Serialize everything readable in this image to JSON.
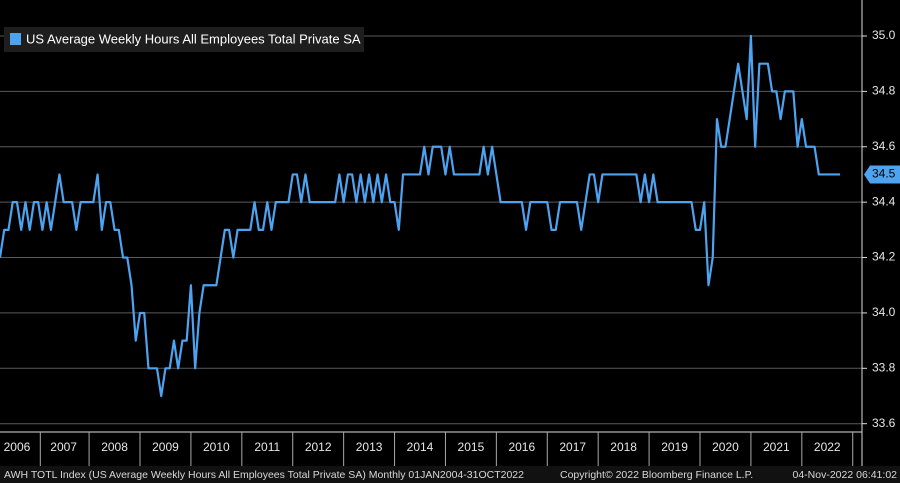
{
  "chart_data": {
    "type": "line",
    "title": "US Average Weekly Hours All Employees Total Private SA",
    "source": "AWH TOTL Index (US Average Weekly Hours All Employees Total Private SA)  Monthly 01JAN2004-31OCT2022",
    "copyright": "Copyright© 2022 Bloomberg Finance L.P.",
    "timestamp": "04-Nov-2022 06:41:02",
    "categories": [
      null,
      null,
      null,
      null,
      "2006",
      null,
      null,
      null,
      null,
      null,
      null,
      null,
      null,
      null,
      null,
      "2007",
      null,
      null,
      null,
      null,
      null,
      null,
      null,
      null,
      null,
      null,
      null,
      "2008",
      null,
      null,
      null,
      null,
      null,
      null,
      null,
      null,
      null,
      null,
      null,
      "2009",
      null,
      null,
      null,
      null,
      null,
      null,
      null,
      null,
      null,
      null,
      null,
      "2010",
      null,
      null,
      null,
      null,
      null,
      null,
      null,
      null,
      null,
      null,
      null,
      "2011",
      null,
      null,
      null,
      null,
      null,
      null,
      null,
      null,
      null,
      null,
      null,
      "2012",
      null,
      null,
      null,
      null,
      null,
      null,
      null,
      null,
      null,
      null,
      null,
      "2013",
      null,
      null,
      null,
      null,
      null,
      null,
      null,
      null,
      null,
      null,
      null,
      "2014",
      null,
      null,
      null,
      null,
      null,
      null,
      null,
      null,
      null,
      null,
      null,
      "2015",
      null,
      null,
      null,
      null,
      null,
      null,
      null,
      null,
      null,
      null,
      null,
      "2016",
      null,
      null,
      null,
      null,
      null,
      null,
      null,
      null,
      null,
      null,
      null,
      "2017",
      null,
      null,
      null,
      null,
      null,
      null,
      null,
      null,
      null,
      null,
      null,
      "2018",
      null,
      null,
      null,
      null,
      null,
      null,
      null,
      null,
      null,
      null,
      null,
      "2019",
      null,
      null,
      null,
      null,
      null,
      null,
      null,
      null,
      null,
      null,
      null,
      "2020",
      null,
      null,
      null,
      null,
      null,
      null,
      null,
      null,
      null,
      null,
      null,
      "2021",
      null,
      null,
      null,
      null,
      null,
      null,
      null,
      null,
      null,
      null,
      null,
      "2022",
      null,
      null,
      null
    ],
    "series": [
      {
        "name": "US Average Weekly Hours All Employees Total Private SA",
        "color": "#4ea3f0",
        "values": [
          34.2,
          34.3,
          34.3,
          34.4,
          34.4,
          34.3,
          34.4,
          34.3,
          34.4,
          34.4,
          34.3,
          34.4,
          34.3,
          34.4,
          34.5,
          34.4,
          34.4,
          34.4,
          34.3,
          34.4,
          34.4,
          34.4,
          34.4,
          34.5,
          34.3,
          34.4,
          34.4,
          34.3,
          34.3,
          34.2,
          34.2,
          34.1,
          33.9,
          34.0,
          34.0,
          33.8,
          33.8,
          33.8,
          33.7,
          33.8,
          33.8,
          33.9,
          33.8,
          33.9,
          33.9,
          34.1,
          33.8,
          34.0,
          34.1,
          34.1,
          34.1,
          34.1,
          34.2,
          34.3,
          34.3,
          34.2,
          34.3,
          34.3,
          34.3,
          34.3,
          34.4,
          34.3,
          34.3,
          34.4,
          34.3,
          34.4,
          34.4,
          34.4,
          34.4,
          34.5,
          34.5,
          34.4,
          34.5,
          34.4,
          34.4,
          34.4,
          34.4,
          34.4,
          34.4,
          34.4,
          34.5,
          34.4,
          34.5,
          34.5,
          34.4,
          34.5,
          34.4,
          34.5,
          34.4,
          34.5,
          34.4,
          34.5,
          34.4,
          34.4,
          34.3,
          34.5,
          34.5,
          34.5,
          34.5,
          34.5,
          34.6,
          34.5,
          34.6,
          34.6,
          34.6,
          34.5,
          34.6,
          34.5,
          34.5,
          34.5,
          34.5,
          34.5,
          34.5,
          34.5,
          34.6,
          34.5,
          34.6,
          34.5,
          34.4,
          34.4,
          34.4,
          34.4,
          34.4,
          34.4,
          34.3,
          34.4,
          34.4,
          34.4,
          34.4,
          34.4,
          34.3,
          34.3,
          34.4,
          34.4,
          34.4,
          34.4,
          34.4,
          34.3,
          34.4,
          34.5,
          34.5,
          34.4,
          34.5,
          34.5,
          34.5,
          34.5,
          34.5,
          34.5,
          34.5,
          34.5,
          34.5,
          34.4,
          34.5,
          34.4,
          34.5,
          34.4,
          34.4,
          34.4,
          34.4,
          34.4,
          34.4,
          34.4,
          34.4,
          34.4,
          34.3,
          34.3,
          34.4,
          34.1,
          34.2,
          34.7,
          34.6,
          34.6,
          34.7,
          34.8,
          34.9,
          34.8,
          34.7,
          35.0,
          34.6,
          34.9,
          34.9,
          34.9,
          34.8,
          34.8,
          34.7,
          34.8,
          34.8,
          34.8,
          34.6,
          34.7,
          34.6,
          34.6,
          34.6,
          34.5,
          34.5,
          34.5,
          34.5,
          34.5,
          34.5
        ]
      }
    ],
    "ylim": [
      33.57,
      35.13
    ],
    "yticks": [
      33.6,
      33.8,
      {
        "value": 34.0,
        "label": "34.0"
      },
      34.2,
      34.4,
      34.6,
      34.8,
      {
        "value": 35.0,
        "label": "35.0"
      }
    ],
    "grid": true,
    "legend": "top-left"
  }
}
